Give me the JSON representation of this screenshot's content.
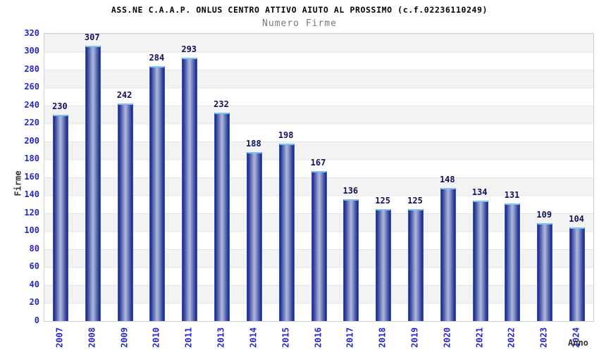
{
  "chart_data": {
    "type": "bar",
    "title": "ASS.NE C.A.A.P. ONLUS CENTRO ATTIVO AIUTO AL PROSSIMO (c.f.02236110249)",
    "subtitle": "Numero Firme",
    "xlabel": "Anno",
    "ylabel": "Firme",
    "categories": [
      "2007",
      "2008",
      "2009",
      "2010",
      "2011",
      "2013",
      "2014",
      "2015",
      "2016",
      "2017",
      "2018",
      "2019",
      "2020",
      "2021",
      "2022",
      "2023",
      "2024"
    ],
    "values": [
      230,
      307,
      242,
      284,
      293,
      232,
      188,
      198,
      167,
      136,
      125,
      125,
      148,
      134,
      131,
      109,
      104
    ],
    "ylim": [
      0,
      320
    ],
    "y_tick_step": 20,
    "y_ticks": [
      0,
      20,
      40,
      60,
      80,
      100,
      120,
      140,
      160,
      180,
      200,
      220,
      240,
      260,
      280,
      300,
      320
    ],
    "grid": true,
    "legend_position": "none",
    "colors": {
      "axis_label_blue": "#2626cc",
      "value_label_navy": "#10105e",
      "bar_edge_dark": "#1c2878",
      "bar_shoulder": "#3d4da0",
      "bar_mid_light": "#a6afd9",
      "bar_border_side": "#2f55de",
      "bar_border_top": "#7fc2f4",
      "stripe_gray": "#f3f3f3",
      "stripe_white": "#ffffff",
      "gridline": "#e4e4e4",
      "plot_border": "#cfcfcf",
      "title_color": "#000000",
      "subtitle_gray": "#787878",
      "axis_title_gray": "#333333"
    }
  }
}
